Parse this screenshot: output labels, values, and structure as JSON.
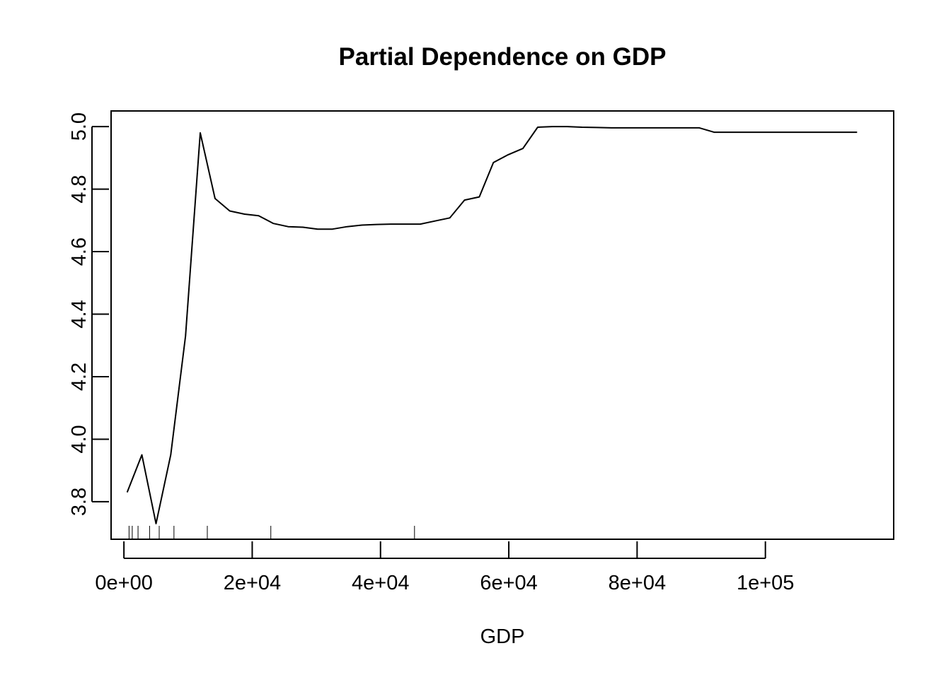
{
  "chart_data": {
    "type": "line",
    "title": "Partial Dependence on GDP",
    "xlabel": "GDP",
    "ylabel": "",
    "xlim": [
      -2000,
      120000
    ],
    "ylim": [
      3.68,
      5.05
    ],
    "x_ticks": [
      {
        "value": 0,
        "label": "0e+00"
      },
      {
        "value": 20000,
        "label": "2e+04"
      },
      {
        "value": 40000,
        "label": "4e+04"
      },
      {
        "value": 60000,
        "label": "6e+04"
      },
      {
        "value": 80000,
        "label": "8e+04"
      },
      {
        "value": 100000,
        "label": "1e+05"
      }
    ],
    "y_ticks": [
      {
        "value": 3.8,
        "label": "3.8"
      },
      {
        "value": 4.0,
        "label": "4.0"
      },
      {
        "value": 4.2,
        "label": "4.2"
      },
      {
        "value": 4.4,
        "label": "4.4"
      },
      {
        "value": 4.6,
        "label": "4.6"
      },
      {
        "value": 4.8,
        "label": "4.8"
      },
      {
        "value": 5.0,
        "label": "5.0"
      }
    ],
    "grid": false,
    "series": [
      {
        "color": "#000000",
        "x": [
          500,
          2800,
          5000,
          7300,
          9600,
          11900,
          14200,
          16500,
          18800,
          21000,
          23300,
          25600,
          27900,
          30200,
          32500,
          34800,
          37100,
          39400,
          41600,
          43900,
          46200,
          48500,
          50800,
          53100,
          55400,
          57600,
          59900,
          62200,
          64500,
          66800,
          69100,
          71400,
          73700,
          76000,
          78200,
          80500,
          82800,
          85100,
          87400,
          89700,
          92000,
          94300,
          96500,
          98800,
          101100,
          103400,
          105700,
          108000,
          110300,
          112600,
          114300
        ],
        "y": [
          3.83,
          3.95,
          3.73,
          3.95,
          4.33,
          4.98,
          4.77,
          4.73,
          4.72,
          4.715,
          4.69,
          4.68,
          4.678,
          4.672,
          4.672,
          4.68,
          4.685,
          4.687,
          4.688,
          4.688,
          4.688,
          4.698,
          4.708,
          4.765,
          4.775,
          4.885,
          4.91,
          4.93,
          4.998,
          5.0,
          5.0,
          4.998,
          4.997,
          4.996,
          4.996,
          4.996,
          4.996,
          4.996,
          4.996,
          4.996,
          4.982,
          4.982,
          4.982,
          4.982,
          4.982,
          4.982,
          4.982,
          4.982,
          4.982,
          4.982,
          4.982
        ]
      }
    ],
    "rug": [
      800,
      1300,
      2200,
      4000,
      5500,
      7800,
      13000,
      22900,
      45300
    ]
  }
}
